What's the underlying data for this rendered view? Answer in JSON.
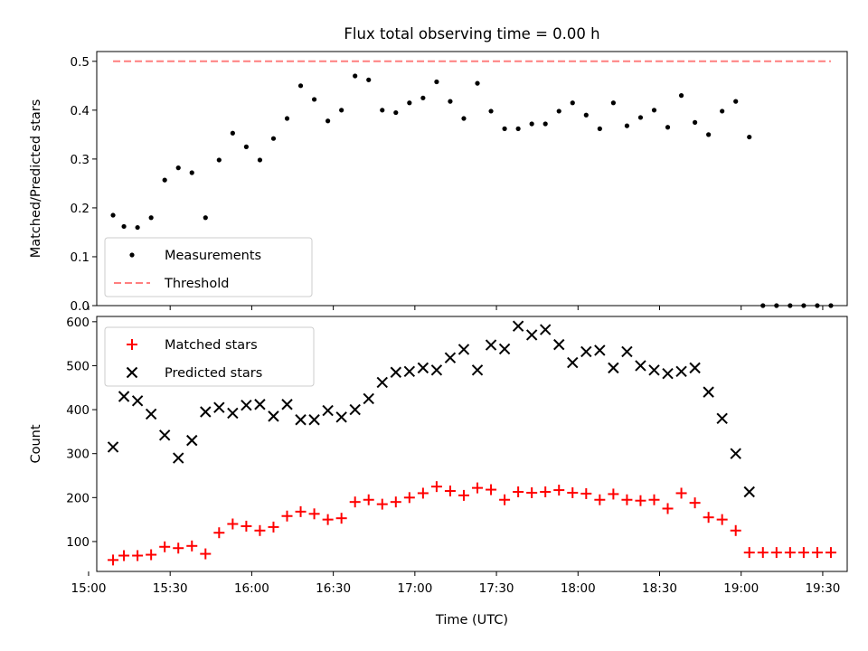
{
  "title": "Flux total observing time = 0.00 h",
  "chart_data": [
    {
      "type": "scatter",
      "ylabel": "Matched/Predicted stars",
      "xlabel": "",
      "xlim": [
        "15:03",
        "19:39"
      ],
      "ylim": [
        0,
        0.52
      ],
      "yticks": [
        0.0,
        0.1,
        0.2,
        0.3,
        0.4,
        0.5
      ],
      "ytick_labels": [
        "0.0",
        "0.1",
        "0.2",
        "0.3",
        "0.4",
        "0.5"
      ],
      "legend": {
        "placement": "lower-left",
        "entries": [
          "Measurements",
          "Threshold"
        ]
      },
      "series": [
        {
          "name": "Measurements",
          "marker": "dot",
          "color": "#000000",
          "x": [
            "15:09",
            "15:13",
            "15:18",
            "15:23",
            "15:28",
            "15:33",
            "15:38",
            "15:43",
            "15:48",
            "15:53",
            "15:58",
            "16:03",
            "16:08",
            "16:13",
            "16:18",
            "16:23",
            "16:28",
            "16:33",
            "16:38",
            "16:43",
            "16:48",
            "16:53",
            "16:58",
            "17:03",
            "17:08",
            "17:13",
            "17:18",
            "17:23",
            "17:28",
            "17:33",
            "17:38",
            "17:43",
            "17:48",
            "17:53",
            "17:58",
            "18:03",
            "18:08",
            "18:13",
            "18:18",
            "18:23",
            "18:28",
            "18:33",
            "18:38",
            "18:43",
            "18:48",
            "18:53",
            "18:58",
            "19:03",
            "19:08",
            "19:13",
            "19:18",
            "19:23",
            "19:28",
            "19:33"
          ],
          "y": [
            0.185,
            0.162,
            0.16,
            0.18,
            0.257,
            0.282,
            0.272,
            0.18,
            0.298,
            0.353,
            0.325,
            0.298,
            0.342,
            0.383,
            0.45,
            0.422,
            0.378,
            0.4,
            0.47,
            0.462,
            0.4,
            0.395,
            0.415,
            0.425,
            0.458,
            0.418,
            0.383,
            0.455,
            0.398,
            0.362,
            0.362,
            0.372,
            0.372,
            0.398,
            0.415,
            0.39,
            0.362,
            0.415,
            0.368,
            0.385,
            0.4,
            0.365,
            0.43,
            0.375,
            0.35,
            0.398,
            0.418,
            0.345,
            0.0,
            0.0,
            0.0,
            0.0,
            0.0,
            0.0
          ]
        },
        {
          "name": "Threshold",
          "style": "dashed",
          "color": "#ff7f7f",
          "x": [
            "15:09",
            "19:33"
          ],
          "y": [
            0.5,
            0.5
          ]
        }
      ]
    },
    {
      "type": "scatter",
      "ylabel": "Count",
      "xlabel": "Time (UTC)",
      "xlim": [
        "15:03",
        "19:39"
      ],
      "ylim": [
        32,
        612
      ],
      "yticks": [
        100,
        200,
        300,
        400,
        500,
        600
      ],
      "ytick_labels": [
        "100",
        "200",
        "300",
        "400",
        "500",
        "600"
      ],
      "xticks": [
        "15:00",
        "15:30",
        "16:00",
        "16:30",
        "17:00",
        "17:30",
        "18:00",
        "18:30",
        "19:00",
        "19:30"
      ],
      "xtick_labels": [
        "15:00",
        "15:30",
        "16:00",
        "16:30",
        "17:00",
        "17:30",
        "18:00",
        "18:30",
        "19:00",
        "19:30"
      ],
      "legend": {
        "placement": "upper-left",
        "entries": [
          "Matched stars",
          "Predicted stars"
        ]
      },
      "series": [
        {
          "name": "Matched stars",
          "marker": "plus",
          "color": "#ff0000",
          "x": [
            "15:09",
            "15:13",
            "15:18",
            "15:23",
            "15:28",
            "15:33",
            "15:38",
            "15:43",
            "15:48",
            "15:53",
            "15:58",
            "16:03",
            "16:08",
            "16:13",
            "16:18",
            "16:23",
            "16:28",
            "16:33",
            "16:38",
            "16:43",
            "16:48",
            "16:53",
            "16:58",
            "17:03",
            "17:08",
            "17:13",
            "17:18",
            "17:23",
            "17:28",
            "17:33",
            "17:38",
            "17:43",
            "17:48",
            "17:53",
            "17:58",
            "18:03",
            "18:08",
            "18:13",
            "18:18",
            "18:23",
            "18:28",
            "18:33",
            "18:38",
            "18:43",
            "18:48",
            "18:53",
            "18:58",
            "19:03",
            "19:08",
            "19:13",
            "19:18",
            "19:23",
            "19:28",
            "19:33"
          ],
          "y": [
            58,
            68,
            68,
            70,
            88,
            85,
            90,
            72,
            120,
            140,
            135,
            125,
            133,
            158,
            168,
            163,
            150,
            153,
            190,
            195,
            185,
            190,
            200,
            210,
            225,
            215,
            205,
            222,
            218,
            195,
            213,
            211,
            213,
            217,
            211,
            209,
            195,
            208,
            195,
            193,
            195,
            175,
            210,
            188,
            155,
            150,
            125,
            75,
            75,
            75,
            75,
            75,
            75,
            75
          ]
        },
        {
          "name": "Predicted stars",
          "marker": "x",
          "color": "#000000",
          "x": [
            "15:09",
            "15:13",
            "15:18",
            "15:23",
            "15:28",
            "15:33",
            "15:38",
            "15:43",
            "15:48",
            "15:53",
            "15:58",
            "16:03",
            "16:08",
            "16:13",
            "16:18",
            "16:23",
            "16:28",
            "16:33",
            "16:38",
            "16:43",
            "16:48",
            "16:53",
            "16:58",
            "17:03",
            "17:08",
            "17:13",
            "17:18",
            "17:23",
            "17:28",
            "17:33",
            "17:38",
            "17:43",
            "17:48",
            "17:53",
            "17:58",
            "18:03",
            "18:08",
            "18:13",
            "18:18",
            "18:23",
            "18:28",
            "18:33",
            "18:38",
            "18:43",
            "18:48",
            "18:53",
            "18:58",
            "19:03"
          ],
          "y": [
            315,
            430,
            420,
            390,
            342,
            290,
            330,
            395,
            405,
            392,
            410,
            412,
            385,
            412,
            377,
            377,
            398,
            383,
            400,
            425,
            462,
            485,
            487,
            495,
            490,
            518,
            537,
            490,
            547,
            538,
            590,
            570,
            582,
            548,
            507,
            532,
            535,
            495,
            532,
            500,
            490,
            482,
            487,
            495,
            440,
            380,
            300,
            213
          ]
        }
      ]
    }
  ]
}
